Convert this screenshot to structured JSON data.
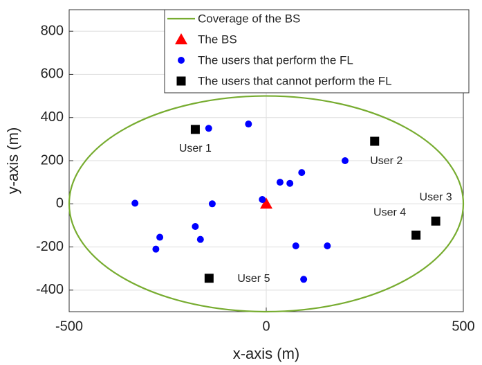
{
  "chart_data": {
    "type": "scatter",
    "xlabel": "x-axis (m)",
    "ylabel": "y-axis (m)",
    "xlim": [
      -500,
      500
    ],
    "xticks": [
      -500,
      0,
      500
    ],
    "ylim": [
      -500,
      900
    ],
    "yticks": [
      -400,
      -200,
      0,
      200,
      400,
      600,
      800
    ],
    "grid": true,
    "legend": "top-right",
    "coverage": {
      "name": "Coverage of the BS",
      "color": "#77ac30",
      "radius": 500
    },
    "series": [
      {
        "name": "The BS",
        "color": "#ff0000",
        "marker": "triangle",
        "x": [
          0
        ],
        "y": [
          0
        ]
      },
      {
        "name": "The users that perform the FL",
        "color": "#0000ff",
        "marker": "circle",
        "x": [
          -146,
          -45,
          -333,
          -137,
          -270,
          -280,
          -180,
          -167,
          -10,
          35,
          60,
          90,
          200,
          75,
          155,
          95
        ],
        "y": [
          350,
          370,
          3,
          0,
          -155,
          -210,
          -105,
          -165,
          20,
          100,
          95,
          145,
          200,
          -195,
          -195,
          -350
        ]
      },
      {
        "name": "The users that cannot perform the FL",
        "color": "#000000",
        "marker": "square",
        "x": [
          -180,
          275,
          430,
          380,
          -145
        ],
        "y": [
          345,
          290,
          -80,
          -145,
          -345
        ],
        "labels": [
          "User 1",
          "User 2",
          "User 3",
          "User 4",
          "User 5"
        ]
      }
    ]
  }
}
